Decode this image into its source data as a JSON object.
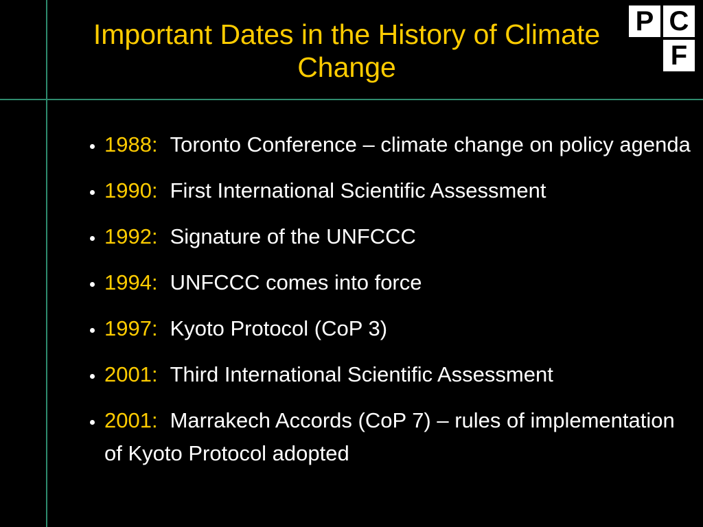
{
  "title": "Important Dates in the History of Climate Change",
  "logo": [
    "P",
    "C",
    "F"
  ],
  "items": [
    {
      "year": "1988:",
      "text": "Toronto Conference – climate change on policy agenda"
    },
    {
      "year": "1990:",
      "text": "First International Scientific Assessment"
    },
    {
      "year": "1992:",
      "text": "Signature of the UNFCCC"
    },
    {
      "year": "1994:",
      "text": "UNFCCC comes into force"
    },
    {
      "year": "1997:",
      "text": "Kyoto Protocol (CoP 3)"
    },
    {
      "year": "2001:",
      "text": "Third International Scientific Assessment"
    },
    {
      "year": "2001:",
      "text": "Marrakech Accords (CoP 7) – rules of implementation of Kyoto Protocol adopted"
    }
  ]
}
